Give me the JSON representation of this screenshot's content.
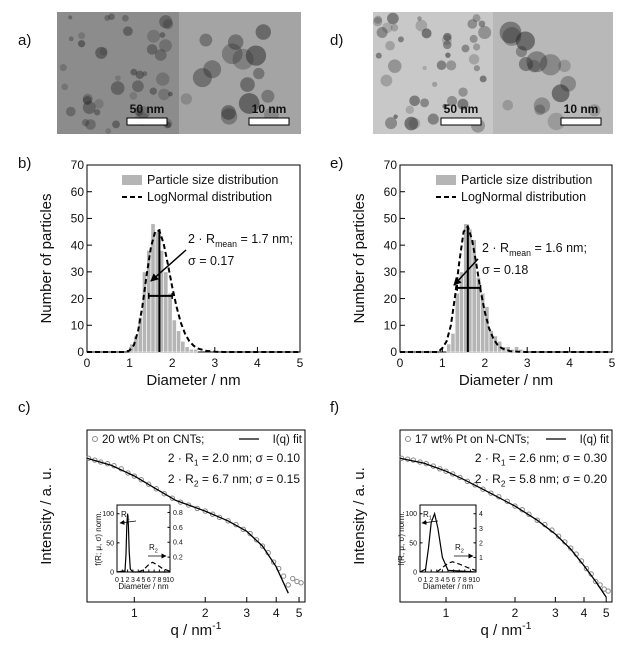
{
  "panel_labels": [
    "a)",
    "b)",
    "c)",
    "d)",
    "e)",
    "f)"
  ],
  "images": [
    {
      "scale_bars": [
        "50 nm",
        "10 nm"
      ]
    },
    {
      "scale_bars": [
        "50 nm",
        "10 nm"
      ]
    }
  ],
  "chart_data": [
    {
      "type": "histogram",
      "xlabel": "Diameter / nm",
      "ylabel": "Number of particles",
      "xlim": [
        0,
        5
      ],
      "xticks": [
        0,
        1,
        2,
        3,
        4,
        5
      ],
      "ylim": [
        0,
        70
      ],
      "yticks": [
        0,
        10,
        20,
        30,
        40,
        50,
        60,
        70
      ],
      "series": [
        {
          "name": "Particle size distribution",
          "color": "#b5b5b5",
          "bins": [
            1.0,
            1.1,
            1.2,
            1.3,
            1.4,
            1.5,
            1.6,
            1.7,
            1.8,
            1.9,
            2.0,
            2.1,
            2.2,
            2.3,
            2.4,
            2.5,
            2.6
          ],
          "values": [
            3,
            6,
            13,
            30,
            38,
            48,
            45,
            38,
            30,
            22,
            12,
            8,
            4,
            2,
            1,
            1
          ]
        },
        {
          "name": "LogNormal distribution",
          "color": "#000000",
          "line_style": "dashed",
          "x": [
            0,
            0.9,
            1.0,
            1.1,
            1.2,
            1.3,
            1.4,
            1.5,
            1.6,
            1.7,
            1.8,
            1.9,
            2.0,
            2.1,
            2.2,
            2.3,
            2.4,
            2.5,
            2.6,
            2.8,
            3.0,
            3.2,
            5
          ],
          "values": [
            0,
            0,
            0.6,
            2.6,
            7.9,
            17.1,
            28.7,
            39.2,
            45.2,
            45.4,
            40.5,
            32.8,
            24.4,
            17.0,
            11.1,
            6.9,
            4.1,
            2.4,
            1.3,
            0.4,
            0.1,
            0,
            0
          ]
        }
      ],
      "mean_marker": {
        "x": 1.7,
        "y": 46
      },
      "fwhm_bar": {
        "x": [
          1.45,
          2.0
        ],
        "y": 21
      },
      "annotations": [
        [
          "2 · R",
          "mean",
          " = 1.7 nm;"
        ],
        [
          "σ = 0.17"
        ]
      ]
    },
    {
      "type": "scatter",
      "xlabel": [
        "q / nm",
        "-1"
      ],
      "ylabel": "Intensity / a. u.",
      "log_x": true,
      "log_y": true,
      "xlim": [
        0.63,
        5.3
      ],
      "xticks": [
        1,
        2,
        3,
        4,
        5
      ],
      "ylim": [
        0.0001,
        1
      ],
      "series": [
        {
          "name": "20 wt% Pt on CNTs;",
          "color": "#8a8a8a",
          "marker": "circle",
          "x": [
            0.64,
            0.68,
            0.72,
            0.77,
            0.82,
            0.88,
            0.94,
            1.0,
            1.07,
            1.15,
            1.24,
            1.34,
            1.45,
            1.57,
            1.7,
            1.85,
            2.0,
            2.15,
            2.3,
            2.5,
            2.7,
            2.9,
            3.1,
            3.3,
            3.5,
            3.7,
            3.9,
            4.1,
            4.3,
            4.5,
            4.7,
            4.9,
            5.1
          ],
          "values": [
            0.22,
            0.2,
            0.18,
            0.165,
            0.148,
            0.125,
            0.1,
            0.085,
            0.07,
            0.055,
            0.043,
            0.033,
            0.026,
            0.021,
            0.018,
            0.015,
            0.013,
            0.011,
            0.0093,
            0.0077,
            0.0063,
            0.0049,
            0.0039,
            0.0028,
            0.002,
            0.0014,
            0.00085,
            0.0006,
            0.0004,
            0.00025,
            0.00035,
            0.0003,
            0.00028
          ]
        },
        {
          "name": "I(q) fit",
          "color": "#000000",
          "x": [
            0.63,
            0.8,
            1,
            1.2,
            1.5,
            2,
            2.5,
            3,
            3.5,
            4,
            4.5
          ],
          "values": [
            0.22,
            0.15,
            0.085,
            0.047,
            0.023,
            0.013,
            0.0077,
            0.0044,
            0.002,
            0.00066,
            0.00016
          ]
        }
      ],
      "annotations": [
        [
          "2 · R",
          "1",
          " = 2.0 nm; σ = 0.10"
        ],
        [
          "2 · R",
          "2",
          " = 6.7 nm; σ = 0.15"
        ]
      ]
    },
    {
      "type": "line",
      "xlabel": "Diameter / nm",
      "ylabel": "f(R; μ, σ) norm.",
      "xlim": [
        0,
        10
      ],
      "xticks": [
        0,
        1,
        2,
        3,
        4,
        5,
        6,
        7,
        8,
        9,
        10
      ],
      "ylim": [
        0,
        115
      ],
      "yticks": [
        0,
        50,
        100
      ],
      "y2lim": [
        0,
        0.9
      ],
      "y2ticks": [
        0.2,
        0.4,
        0.6,
        0.8
      ],
      "series": [
        {
          "color": "#000000",
          "line_style": "solid",
          "x": [
            0,
            1.5,
            1.7,
            1.85,
            2.0,
            2.15,
            2.3,
            2.5,
            3,
            10
          ],
          "values": [
            0,
            2,
            30,
            80,
            100,
            80,
            35,
            5,
            0,
            0
          ]
        },
        {
          "color": "#000000",
          "line_style": "dashed",
          "axis": "y2",
          "x": [
            4,
            5,
            6,
            6.7,
            7.5,
            8.5,
            10
          ],
          "values": [
            0,
            0.03,
            0.1,
            0.13,
            0.1,
            0.05,
            0.01
          ]
        }
      ],
      "annotations": [
        [
          "R",
          "1"
        ],
        [
          "R",
          "2"
        ]
      ]
    },
    {
      "type": "histogram",
      "xlabel": "Diameter / nm",
      "ylabel": "Number of particles",
      "xlim": [
        0,
        5
      ],
      "xticks": [
        0,
        1,
        2,
        3,
        4,
        5
      ],
      "ylim": [
        0,
        70
      ],
      "yticks": [
        0,
        10,
        20,
        30,
        40,
        50,
        60,
        70
      ],
      "series": [
        {
          "name": "Particle size distribution",
          "color": "#b5b5b5",
          "bins": [
            1.1,
            1.2,
            1.3,
            1.4,
            1.5,
            1.6,
            1.7,
            1.8,
            1.9,
            2.0,
            2.1,
            2.2,
            2.3,
            2.4,
            2.5,
            2.6,
            2.7,
            2.8,
            2.9
          ],
          "values": [
            3,
            7,
            22,
            30,
            48,
            46,
            42,
            28,
            22,
            17,
            8,
            6,
            4,
            2,
            2,
            1,
            2,
            1
          ]
        },
        {
          "name": "LogNormal distribution",
          "color": "#000000",
          "line_style": "dashed",
          "x": [
            0,
            0.9,
            1.0,
            1.1,
            1.2,
            1.3,
            1.4,
            1.5,
            1.6,
            1.7,
            1.8,
            1.9,
            2.0,
            2.1,
            2.2,
            2.3,
            2.4,
            2.6,
            2.8,
            3.0,
            5
          ],
          "values": [
            0,
            0,
            1.5,
            4,
            10,
            21,
            34,
            45,
            47,
            42,
            33,
            23,
            15,
            9,
            5,
            2.7,
            1.4,
            0.3,
            0.1,
            0,
            0
          ]
        }
      ],
      "mean_marker": {
        "x": 1.6,
        "y": 47
      },
      "fwhm_bar": {
        "x": [
          1.35,
          1.9
        ],
        "y": 24
      },
      "annotations": [
        [
          "2 · R",
          "mean",
          " = 1.6 nm;"
        ],
        [
          "σ = 0.18"
        ]
      ]
    },
    {
      "type": "scatter",
      "xlabel": [
        "q / nm",
        "-1"
      ],
      "ylabel": "Intensity / a. u.",
      "log_x": true,
      "log_y": true,
      "xlim": [
        0.63,
        5.3
      ],
      "xticks": [
        1,
        2,
        3,
        4,
        5
      ],
      "ylim": [
        0.0001,
        1
      ],
      "series": [
        {
          "name": "17 wt% Pt on N-CNTs;",
          "color": "#8a8a8a",
          "marker": "circle",
          "x": [
            0.64,
            0.68,
            0.72,
            0.77,
            0.82,
            0.88,
            0.94,
            1.0,
            1.07,
            1.15,
            1.24,
            1.34,
            1.45,
            1.57,
            1.7,
            1.85,
            2.0,
            2.15,
            2.3,
            2.5,
            2.7,
            2.9,
            3.1,
            3.3,
            3.5,
            3.7,
            3.9,
            4.1,
            4.3,
            4.5,
            4.7,
            4.9,
            5.1
          ],
          "values": [
            0.22,
            0.21,
            0.2,
            0.18,
            0.165,
            0.145,
            0.125,
            0.11,
            0.095,
            0.079,
            0.064,
            0.053,
            0.042,
            0.034,
            0.028,
            0.022,
            0.017,
            0.014,
            0.011,
            0.008,
            0.0063,
            0.0047,
            0.0034,
            0.0025,
            0.0018,
            0.0013,
            0.0009,
            0.0006,
            0.00045,
            0.0003,
            0.00025,
            0.0002,
            0.00018
          ]
        },
        {
          "name": "I(q) fit",
          "color": "#000000",
          "x": [
            0.63,
            0.8,
            1,
            1.2,
            1.5,
            2,
            2.5,
            3,
            3.5,
            4,
            4.5,
            5
          ],
          "values": [
            0.22,
            0.17,
            0.11,
            0.07,
            0.038,
            0.017,
            0.008,
            0.0038,
            0.0017,
            0.0007,
            0.0003,
            0.00013
          ]
        }
      ],
      "annotations": [
        [
          "2 · R",
          "1",
          " = 2.6 nm; σ = 0.30"
        ],
        [
          "2 · R",
          "2",
          " = 5.8 nm; σ = 0.20"
        ]
      ]
    },
    {
      "type": "line",
      "xlabel": "Diameter / nm",
      "ylabel": "f(R; μ, σ) norm.",
      "xlim": [
        0,
        10
      ],
      "xticks": [
        0,
        1,
        2,
        3,
        4,
        5,
        6,
        7,
        8,
        9,
        10
      ],
      "ylim": [
        0,
        115
      ],
      "yticks": [
        0,
        50,
        100
      ],
      "y2lim": [
        0,
        4.6
      ],
      "y2ticks": [
        1,
        2,
        3,
        4
      ],
      "series": [
        {
          "color": "#000000",
          "line_style": "solid",
          "x": [
            0,
            1,
            1.5,
            2,
            2.6,
            3.2,
            4,
            5,
            10
          ],
          "values": [
            0,
            5,
            40,
            85,
            100,
            75,
            25,
            3,
            0
          ]
        },
        {
          "color": "#000000",
          "line_style": "dashed",
          "axis": "y2",
          "x": [
            3,
            4,
            5,
            5.8,
            7,
            8.5,
            10
          ],
          "values": [
            0,
            0.3,
            0.6,
            0.7,
            0.55,
            0.3,
            0.1
          ]
        }
      ],
      "annotations": [
        [
          "R",
          "1"
        ],
        [
          "R",
          "2"
        ]
      ]
    }
  ]
}
